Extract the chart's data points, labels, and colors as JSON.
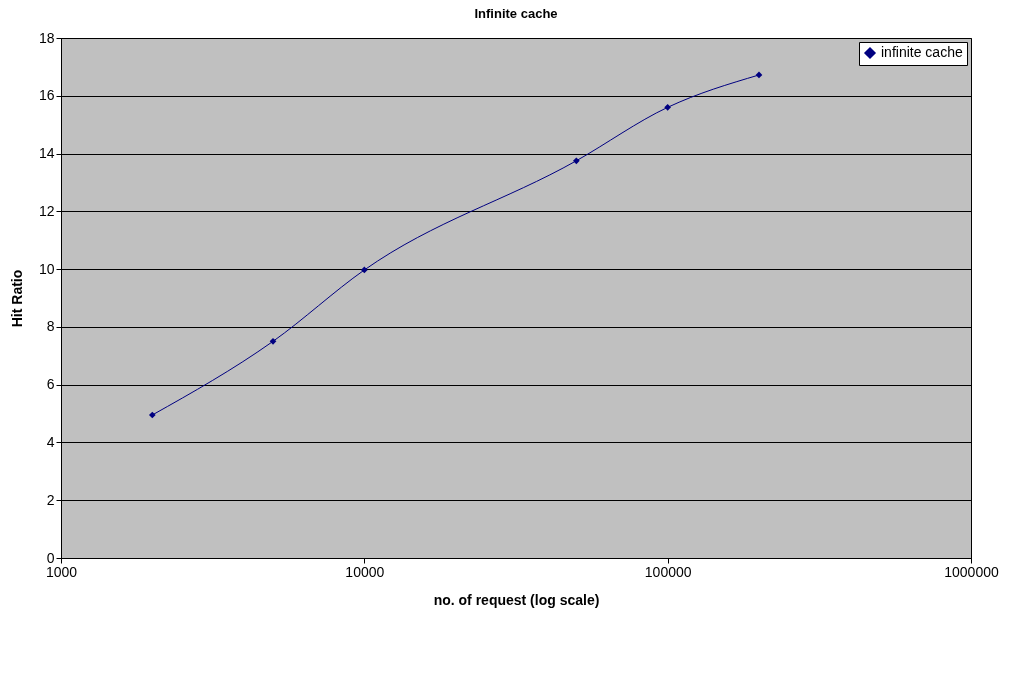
{
  "chart_data": {
    "type": "line",
    "title": "Infinite cache",
    "xlabel": "no. of  request (log scale)",
    "ylabel": "Hit Ratio",
    "x": [
      2000,
      5000,
      10000,
      50000,
      100000,
      200000
    ],
    "series": [
      {
        "name": "infinite cache",
        "color": "#000080",
        "values": [
          4.95,
          7.5,
          9.97,
          13.75,
          15.6,
          16.72
        ]
      }
    ],
    "xlim": [
      1000,
      1000000
    ],
    "xticks": [
      1000,
      10000,
      100000,
      1000000
    ],
    "ylim": [
      0,
      18
    ],
    "yticks": [
      0,
      2,
      4,
      6,
      8,
      10,
      12,
      14,
      16,
      18
    ],
    "log": "x",
    "grid": "y",
    "legend": "top right",
    "marker": "diamond",
    "line_style": "solid"
  }
}
